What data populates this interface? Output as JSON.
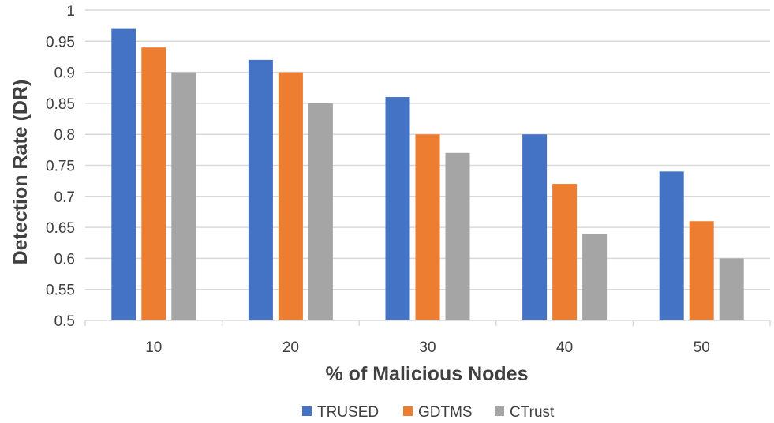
{
  "chart_data": {
    "type": "bar",
    "title": "",
    "xlabel": "% of Malicious Nodes",
    "ylabel": "Detection Rate (DR)",
    "categories": [
      "10",
      "20",
      "30",
      "40",
      "50"
    ],
    "ylim": [
      0.5,
      1
    ],
    "yticks": [
      "0.5",
      "0.55",
      "0.6",
      "0.65",
      "0.7",
      "0.75",
      "0.8",
      "0.85",
      "0.9",
      "0.95",
      "1"
    ],
    "grid": true,
    "legend_position": "bottom",
    "series": [
      {
        "name": "TRUSED",
        "color": "#4472C4",
        "values": [
          0.97,
          0.92,
          0.86,
          0.8,
          0.74
        ]
      },
      {
        "name": "GDTMS",
        "color": "#ED7D31",
        "values": [
          0.94,
          0.9,
          0.8,
          0.72,
          0.66
        ]
      },
      {
        "name": "CTrust",
        "color": "#A5A5A5",
        "values": [
          0.9,
          0.85,
          0.77,
          0.64,
          0.6
        ]
      }
    ]
  }
}
